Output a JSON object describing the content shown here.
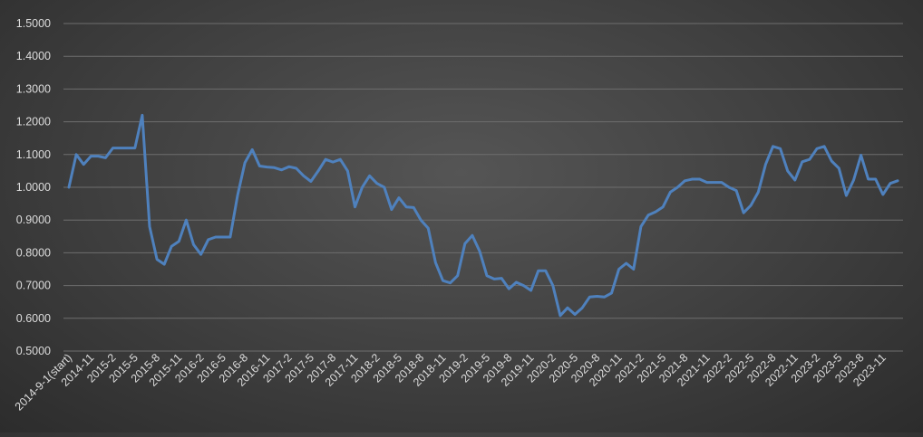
{
  "chart_data": {
    "type": "line",
    "title": "",
    "xlabel": "",
    "ylabel": "",
    "ylim": [
      0.5,
      1.5
    ],
    "y_ticks": [
      "0.5000",
      "0.6000",
      "0.7000",
      "0.8000",
      "0.9000",
      "1.0000",
      "1.1000",
      "1.2000",
      "1.3000",
      "1.4000",
      "1.5000"
    ],
    "x_tick_labels": [
      "2014-9-1(start)",
      "2014-11",
      "2015-2",
      "2015-5",
      "2015-8",
      "2015-11",
      "2016-2",
      "2016-5",
      "2016-8",
      "2016-11",
      "2017-2",
      "2017-5",
      "2017-8",
      "2017-11",
      "2018-2",
      "2018-5",
      "2018-8",
      "2018-11",
      "2019-2",
      "2019-5",
      "2019-8",
      "2019-11",
      "2020-2",
      "2020-5",
      "2020-8",
      "2020-11",
      "2021-2",
      "2021-5",
      "2021-8",
      "2021-11",
      "2022-2",
      "2022-5",
      "2022-8",
      "2022-11",
      "2023-2",
      "2023-5",
      "2023-8",
      "2023-11"
    ],
    "grid": true,
    "legend": "none",
    "line_color": "#4f81bd",
    "series": [
      {
        "values": [
          1.0,
          1.1,
          1.07,
          1.095,
          1.095,
          1.09,
          1.12,
          1.12,
          1.12,
          1.12,
          1.22,
          0.88,
          0.78,
          0.765,
          0.82,
          0.835,
          0.9,
          0.825,
          0.795,
          0.84,
          0.848,
          0.848,
          0.848,
          0.975,
          1.075,
          1.115,
          1.065,
          1.062,
          1.06,
          1.053,
          1.063,
          1.058,
          1.035,
          1.018,
          1.05,
          1.085,
          1.077,
          1.085,
          1.05,
          0.94,
          1.0,
          1.035,
          1.012,
          1.0,
          0.932,
          0.968,
          0.94,
          0.938,
          0.9,
          0.875,
          0.77,
          0.715,
          0.708,
          0.73,
          0.828,
          0.853,
          0.805,
          0.73,
          0.72,
          0.722,
          0.69,
          0.71,
          0.7,
          0.685,
          0.745,
          0.745,
          0.7,
          0.608,
          0.632,
          0.612,
          0.632,
          0.665,
          0.667,
          0.665,
          0.677,
          0.75,
          0.768,
          0.75,
          0.88,
          0.915,
          0.925,
          0.94,
          0.985,
          1.0,
          1.02,
          1.025,
          1.025,
          1.015,
          1.015,
          1.015,
          1.0,
          0.99,
          0.922,
          0.945,
          0.985,
          1.07,
          1.125,
          1.118,
          1.05,
          1.022,
          1.078,
          1.085,
          1.118,
          1.125,
          1.08,
          1.058,
          0.975,
          1.022,
          1.098,
          1.025,
          1.025,
          0.978,
          1.012,
          1.02
        ]
      }
    ]
  }
}
